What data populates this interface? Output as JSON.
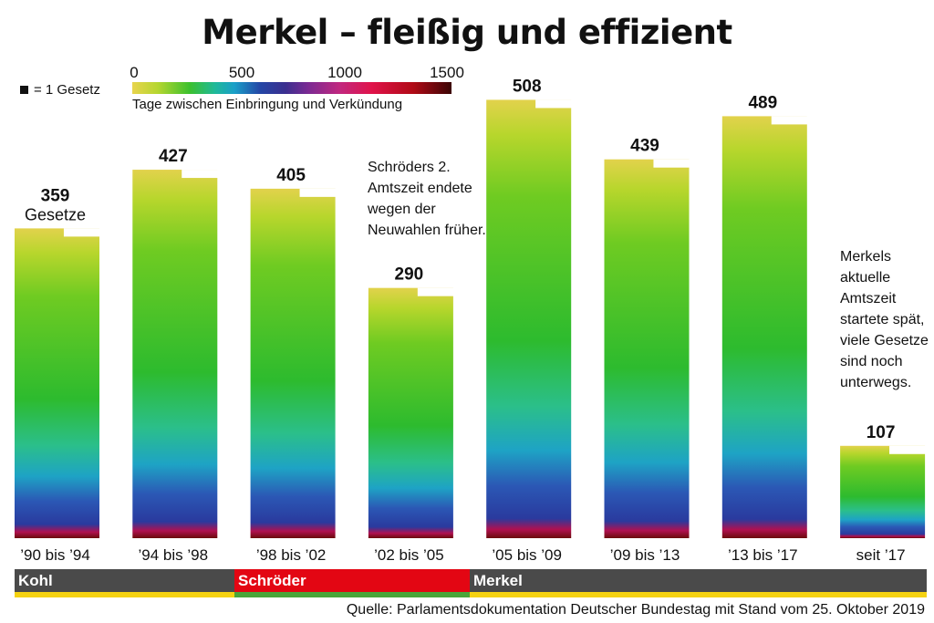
{
  "title": "Merkel – fleißig und effizient",
  "legend": {
    "unit_label": "= 1 Gesetz",
    "scale_ticks": [
      "0",
      "500",
      "1000",
      "1500"
    ],
    "scale_caption": "Tage zwischen Einbringung und Verkündung"
  },
  "notes": {
    "schroeder": "Schröders 2. Amtszeit endete wegen der Neuwahlen früher.",
    "merkel": "Merkels aktuelle Amtszeit startete spät, viele Gesetze sind noch unterwegs."
  },
  "eras": [
    {
      "label": "Kohl",
      "party_color": "#f5d211"
    },
    {
      "label": "Schröder",
      "party_color": "#4aa53a"
    },
    {
      "label": "Merkel",
      "party_color": "#f5d211"
    }
  ],
  "source": "Quelle: Parlamentsdokumentation Deutscher Bundestag mit Stand vom 25. Oktober 2019",
  "chart_data": {
    "type": "bar",
    "categories": [
      "’90 bis ’94",
      "’94 bis ’98",
      "’98 bis ’02",
      "’02 bis ’05",
      "’05 bis ’09",
      "’09 bis ’13",
      "’13 bis ’17",
      "seit ’17"
    ],
    "values": [
      359,
      427,
      405,
      290,
      508,
      439,
      489,
      107
    ],
    "data_labels": [
      "359",
      "427",
      "405",
      "290",
      "508",
      "439",
      "489",
      "107"
    ],
    "first_bar_sublabel": "Gesetze",
    "color_scale": {
      "min": 0,
      "max": 1500,
      "colors": [
        "#e8d44d",
        "#3cc02e",
        "#1a9fc8",
        "#2446a6",
        "#7a2a93",
        "#e0134a",
        "#3b0505"
      ]
    },
    "ylim": [
      0,
      520
    ]
  }
}
